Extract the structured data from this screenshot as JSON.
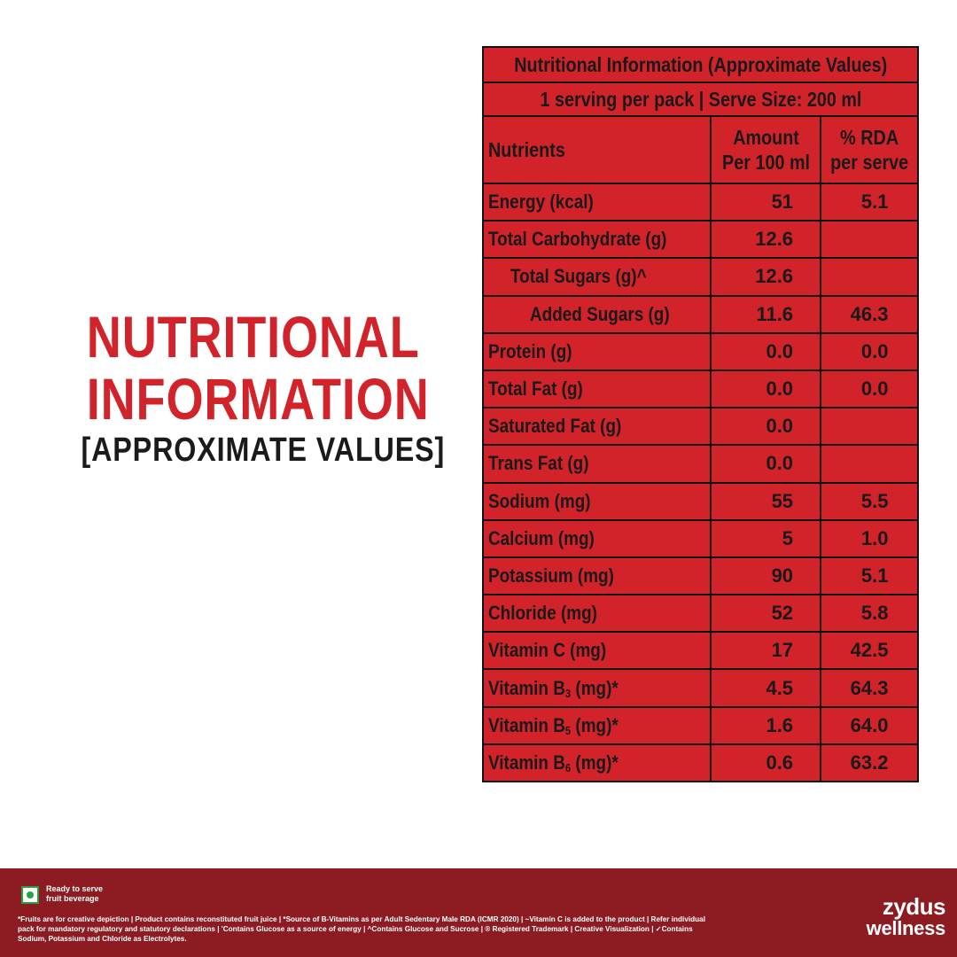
{
  "headline": {
    "line1": "NUTRITIONAL",
    "line2": "INFORMATION",
    "line3": "[APPROXIMATE VALUES]"
  },
  "table": {
    "title": "Nutritional Information (Approximate Values)",
    "serving": "1 serving per pack | Serve Size: 200 ml",
    "headers": {
      "nutrients": "Nutrients",
      "amount_line1": "Amount",
      "amount_line2": "Per 100 ml",
      "rda_line1": "% RDA",
      "rda_line2": "per serve"
    },
    "rows": [
      {
        "name": "Energy (kcal)",
        "amount": "51",
        "rda": "5.1"
      },
      {
        "name": "Total Carbohydrate (g)",
        "amount": "12.6",
        "rda": ""
      },
      {
        "name": "Total Sugars (g)^",
        "amount": "12.6",
        "rda": ""
      },
      {
        "name": "Added Sugars (g)",
        "amount": "11.6",
        "rda": "46.3"
      },
      {
        "name": "Protein (g)",
        "amount": "0.0",
        "rda": "0.0"
      },
      {
        "name": "Total Fat (g)",
        "amount": "0.0",
        "rda": "0.0"
      },
      {
        "name": "Saturated Fat (g)",
        "amount": "0.0",
        "rda": ""
      },
      {
        "name": "Trans Fat (g)",
        "amount": "0.0",
        "rda": ""
      },
      {
        "name": "Sodium (mg)",
        "amount": "55",
        "rda": "5.5"
      },
      {
        "name": "Calcium (mg)",
        "amount": "5",
        "rda": "1.0"
      },
      {
        "name": "Potassium (mg)",
        "amount": "90",
        "rda": "5.1"
      },
      {
        "name": "Chloride (mg)",
        "amount": "52",
        "rda": "5.8"
      },
      {
        "name": "Vitamin C (mg)",
        "amount": "17",
        "rda": "42.5"
      },
      {
        "name_pre": "Vitamin B",
        "name_sub": "3",
        "name_post": " (mg)*",
        "amount": "4.5",
        "rda": "64.3"
      },
      {
        "name_pre": "Vitamin B",
        "name_sub": "5",
        "name_post": " (mg)*",
        "amount": "1.6",
        "rda": "64.0"
      },
      {
        "name_pre": "Vitamin B",
        "name_sub": "6",
        "name_post": " (mg)*",
        "amount": "0.6",
        "rda": "63.2"
      }
    ]
  },
  "footer": {
    "veg_icon": "veg-mark-icon",
    "ready_line1": "Ready to serve",
    "ready_line2": "fruit beverage",
    "disclaimer_line1": "*Fruits are for creative depiction | Product contains reconstituted fruit juice | *Source of B-Vitamins as per Adult Sedentary Male RDA (ICMR 2020) | ~Vitamin C is added to the product | Refer individual",
    "disclaimer_line2": "pack for mandatory regulatory and statutory declarations | 'Contains Glucose as a source of energy | ^Contains Glucose and Sucrose | ® Registered Trademark | Creative Visualization | ✓Contains",
    "disclaimer_line3": "Sodium, Potassium and Chloride as Electrolytes.",
    "brand_line1": "zydus",
    "brand_line2": "wellness"
  },
  "colors": {
    "accent_red": "#d2232a",
    "footer_maroon": "#8c1c21",
    "text_dark": "#1a1a1a"
  }
}
